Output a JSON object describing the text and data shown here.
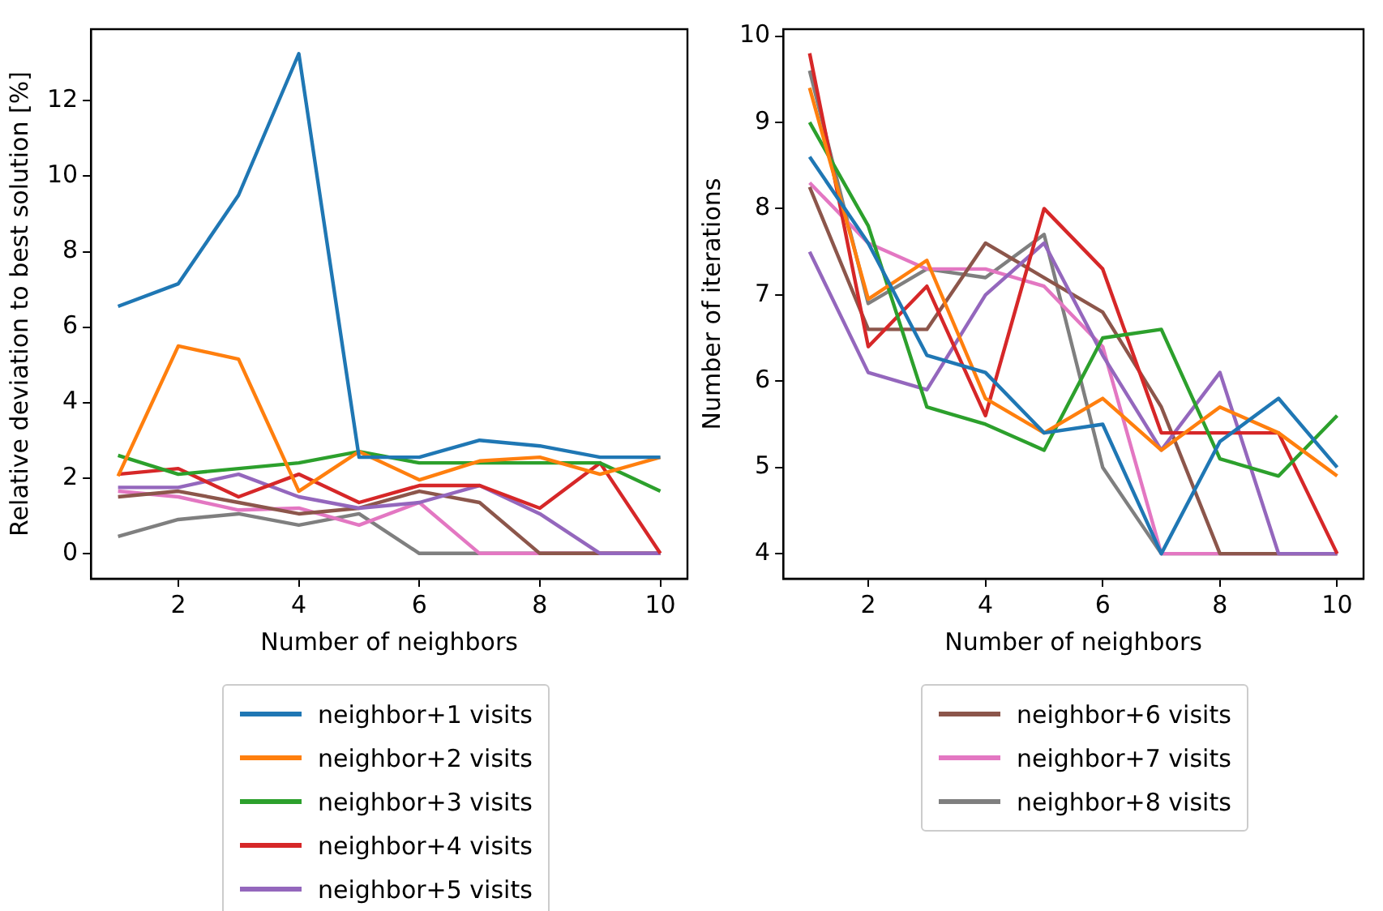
{
  "chart_data": [
    {
      "type": "line",
      "xlabel": "Number of neighbors",
      "ylabel": "Relative deviation to best solution [%]",
      "x": [
        1,
        2,
        3,
        4,
        5,
        6,
        7,
        8,
        9,
        10
      ],
      "xlim": [
        0.55,
        10.45
      ],
      "xticks": [
        2,
        4,
        6,
        8,
        10
      ],
      "ylim": [
        -0.67,
        13.9
      ],
      "yticks": [
        0,
        2,
        4,
        6,
        8,
        10,
        12
      ],
      "grid": false,
      "legend": "bottom",
      "marker": "none",
      "series": [
        {
          "name": "neighbor+1 visits",
          "color": "#1f77b4",
          "values": [
            6.55,
            7.15,
            9.5,
            13.25,
            2.55,
            2.55,
            3.0,
            2.85,
            2.55,
            2.55
          ]
        },
        {
          "name": "neighbor+2 visits",
          "color": "#ff7f0e",
          "values": [
            2.05,
            5.5,
            5.15,
            1.65,
            2.7,
            1.95,
            2.45,
            2.55,
            2.1,
            2.55
          ]
        },
        {
          "name": "neighbor+3 visits",
          "color": "#2ca02c",
          "values": [
            2.6,
            2.1,
            2.25,
            2.4,
            2.7,
            2.4,
            2.4,
            2.4,
            2.4,
            1.65
          ]
        },
        {
          "name": "neighbor+4 visits",
          "color": "#d62728",
          "values": [
            2.1,
            2.25,
            1.5,
            2.1,
            1.35,
            1.8,
            1.8,
            1.2,
            2.4,
            0
          ]
        },
        {
          "name": "neighbor+5 visits",
          "color": "#9467bd",
          "values": [
            1.75,
            1.75,
            2.1,
            1.5,
            1.2,
            1.35,
            1.8,
            1.05,
            0,
            0
          ]
        },
        {
          "color": "#8c564b",
          "values": [
            1.5,
            1.65,
            1.35,
            1.05,
            1.2,
            1.65,
            1.35,
            0,
            0,
            0
          ]
        },
        {
          "color": "#e377c2",
          "values": [
            1.65,
            1.5,
            1.15,
            1.2,
            0.75,
            1.35,
            0,
            0,
            0,
            0
          ]
        },
        {
          "color": "#7f7f7f",
          "values": [
            0.45,
            0.9,
            1.05,
            0.75,
            1.05,
            0,
            0,
            0,
            0,
            0
          ]
        }
      ]
    },
    {
      "type": "line",
      "xlabel": "Number of neighbors",
      "ylabel": "Number of iterations",
      "x": [
        1,
        2,
        3,
        4,
        5,
        6,
        7,
        8,
        9,
        10
      ],
      "xlim": [
        0.55,
        10.45
      ],
      "xticks": [
        2,
        4,
        6,
        8,
        10
      ],
      "ylim": [
        3.71,
        10.08
      ],
      "yticks": [
        4,
        5,
        6,
        7,
        8,
        9,
        10
      ],
      "grid": false,
      "legend": "bottom",
      "marker": "none",
      "series": [
        {
          "color": "#1f77b4",
          "values": [
            8.6,
            7.6,
            6.3,
            6.1,
            5.4,
            5.5,
            4,
            5.3,
            5.8,
            5.0
          ]
        },
        {
          "color": "#ff7f0e",
          "values": [
            9.4,
            6.95,
            7.4,
            5.8,
            5.4,
            5.8,
            5.2,
            5.7,
            5.4,
            4.9
          ]
        },
        {
          "color": "#2ca02c",
          "values": [
            9.0,
            7.8,
            5.7,
            5.5,
            5.2,
            6.5,
            6.6,
            5.1,
            4.9,
            5.6
          ]
        },
        {
          "color": "#d62728",
          "values": [
            9.8,
            6.4,
            7.1,
            5.6,
            8.0,
            7.3,
            5.4,
            5.4,
            5.4,
            4
          ]
        },
        {
          "color": "#9467bd",
          "values": [
            7.5,
            6.1,
            5.9,
            7.0,
            7.6,
            6.3,
            5.2,
            6.1,
            4,
            4
          ]
        },
        {
          "name": "neighbor+6 visits",
          "color": "#8c564b",
          "values": [
            8.25,
            6.6,
            6.6,
            7.6,
            7.2,
            6.8,
            5.7,
            4,
            4,
            4
          ]
        },
        {
          "name": "neighbor+7 visits",
          "color": "#e377c2",
          "values": [
            8.3,
            7.6,
            7.3,
            7.3,
            7.1,
            6.4,
            4,
            4,
            4,
            4
          ]
        },
        {
          "name": "neighbor+8 visits",
          "color": "#7f7f7f",
          "values": [
            9.6,
            6.9,
            7.3,
            7.2,
            7.7,
            5.0,
            4,
            4,
            4,
            4
          ]
        }
      ]
    }
  ]
}
